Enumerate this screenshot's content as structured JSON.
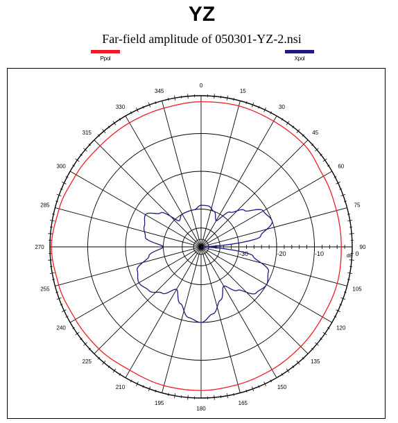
{
  "title": "YZ",
  "subtitle": "Far-field amplitude of 050301-YZ-2.nsi",
  "colors": {
    "ppol": "#ee1c24",
    "xpol": "#1a1a80",
    "grid": "#000000"
  },
  "chart_data": {
    "type": "polar",
    "title": "YZ",
    "subtitle": "Far-field amplitude of 050301-YZ-2.nsi",
    "unit": "dB",
    "rlim": [
      -40,
      0
    ],
    "radial_ticks": [
      -30,
      -20,
      -10,
      0
    ],
    "radial_tick_labels": [
      "-30",
      "-20",
      "-10",
      "0"
    ],
    "angle_step": 15,
    "angle_direction": "clockwise",
    "zero_location": "top",
    "angle_labels": [
      "0",
      "15",
      "30",
      "45",
      "60",
      "75",
      "90",
      "105",
      "120",
      "135",
      "150",
      "165",
      "180",
      "195",
      "210",
      "225",
      "240",
      "255",
      "270",
      "285",
      "300",
      "315",
      "330",
      "345"
    ],
    "legend_position": "top",
    "series": [
      {
        "name": "Ppol",
        "color": "#ee1c24",
        "angles": [
          0,
          15,
          30,
          45,
          60,
          75,
          90,
          105,
          120,
          135,
          150,
          165,
          180,
          195,
          210,
          225,
          240,
          255,
          270,
          285,
          300,
          315,
          330,
          345,
          360
        ],
        "values": [
          -1.6,
          -1.4,
          -1.6,
          -1.6,
          -2.6,
          -2.9,
          -2.9,
          -2.7,
          -2.9,
          -2.7,
          -2.5,
          -2.3,
          -2.0,
          -2.0,
          -2.3,
          -1.8,
          -1.6,
          -1.0,
          -0.4,
          -1.1,
          -1.8,
          -2.2,
          -2.1,
          -2.0,
          -1.6
        ]
      },
      {
        "name": "Xpol",
        "color": "#1a1a80",
        "angles": [
          0,
          10,
          20,
          30,
          40,
          50,
          60,
          70,
          80,
          90,
          100,
          110,
          120,
          130,
          140,
          150,
          160,
          170,
          180,
          190,
          200,
          210,
          220,
          230,
          240,
          250,
          260,
          270,
          280,
          290,
          300,
          310,
          320,
          330,
          340,
          350,
          360
        ],
        "values": [
          -29,
          -29,
          -30,
          -32,
          -28,
          -25,
          -21,
          -20,
          -24,
          -40,
          -26,
          -21,
          -20,
          -21,
          -25,
          -28,
          -25,
          -22,
          -20,
          -21,
          -24,
          -27,
          -24,
          -22,
          -21,
          -22,
          -26,
          -30,
          -25,
          -24,
          -23,
          -26,
          -31,
          -30,
          -30,
          -30,
          -29
        ]
      }
    ]
  }
}
